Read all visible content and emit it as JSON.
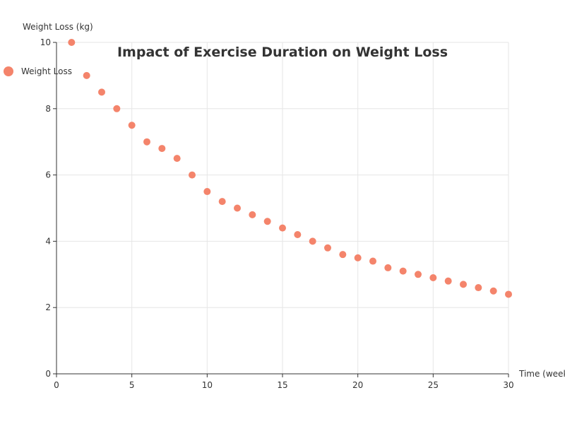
{
  "chart_data": {
    "type": "scatter",
    "title": "Impact of Exercise Duration on Weight Loss",
    "xlabel": "Time (weeks)",
    "ylabel": "Weight Loss (kg)",
    "xlim": [
      0,
      30
    ],
    "ylim": [
      0,
      10
    ],
    "x_ticks": [
      0,
      5,
      10,
      15,
      20,
      25,
      30
    ],
    "y_ticks": [
      0,
      2,
      4,
      6,
      8,
      10
    ],
    "grid": true,
    "legend_position": "top-left",
    "series": [
      {
        "name": "Weight Loss",
        "color": "#f4846b",
        "points": [
          [
            1,
            10.0
          ],
          [
            2,
            9.0
          ],
          [
            3,
            8.5
          ],
          [
            4,
            8.0
          ],
          [
            5,
            7.5
          ],
          [
            6,
            7.0
          ],
          [
            7,
            6.8
          ],
          [
            8,
            6.5
          ],
          [
            9,
            6.0
          ],
          [
            10,
            5.5
          ],
          [
            11,
            5.2
          ],
          [
            12,
            5.0
          ],
          [
            13,
            4.8
          ],
          [
            14,
            4.6
          ],
          [
            15,
            4.4
          ],
          [
            16,
            4.2
          ],
          [
            17,
            4.0
          ],
          [
            18,
            3.8
          ],
          [
            19,
            3.6
          ],
          [
            20,
            3.5
          ],
          [
            21,
            3.4
          ],
          [
            22,
            3.2
          ],
          [
            23,
            3.1
          ],
          [
            24,
            3.0
          ],
          [
            25,
            2.9
          ],
          [
            26,
            2.8
          ],
          [
            27,
            2.7
          ],
          [
            28,
            2.6
          ],
          [
            29,
            2.5
          ],
          [
            30,
            2.4
          ]
        ]
      }
    ]
  }
}
